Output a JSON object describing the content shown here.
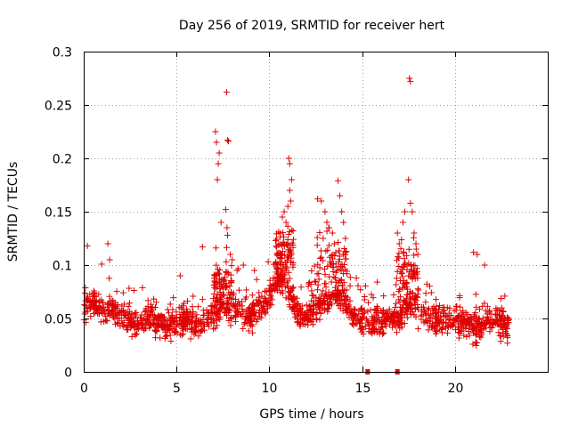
{
  "chart_data": {
    "type": "scatter",
    "title": "Day 256 of 2019, SRMTID for receiver hert",
    "xlabel": "GPS time / hours",
    "ylabel": "SRMTID / TECUs",
    "xlim": [
      0,
      25
    ],
    "ylim": [
      0,
      0.3
    ],
    "grid": true,
    "marker": "+",
    "color": "#e00000",
    "x_ticks": [
      "0",
      "5",
      "10",
      "15",
      "20"
    ],
    "x_tick_values": [
      0,
      5,
      10,
      15,
      20
    ],
    "y_ticks": [
      "0",
      "0.05",
      "0.1",
      "0.15",
      "0.2",
      "0.25",
      "0.3"
    ],
    "y_tick_values": [
      0,
      0.05,
      0.1,
      0.15,
      0.2,
      0.25,
      0.3
    ],
    "baseline": [
      [
        0,
        0.062
      ],
      [
        0.5,
        0.065
      ],
      [
        1,
        0.058
      ],
      [
        1.5,
        0.06
      ],
      [
        2,
        0.052
      ],
      [
        2.5,
        0.048
      ],
      [
        3,
        0.045
      ],
      [
        3.5,
        0.05
      ],
      [
        4,
        0.048
      ],
      [
        4.5,
        0.042
      ],
      [
        5,
        0.045
      ],
      [
        5.5,
        0.05
      ],
      [
        6,
        0.045
      ],
      [
        6.5,
        0.048
      ],
      [
        7,
        0.055
      ],
      [
        7.5,
        0.06
      ],
      [
        8,
        0.058
      ],
      [
        8.5,
        0.055
      ],
      [
        9,
        0.052
      ],
      [
        9.5,
        0.06
      ],
      [
        10,
        0.07
      ],
      [
        10.5,
        0.09
      ],
      [
        11,
        0.08
      ],
      [
        11.5,
        0.055
      ],
      [
        12,
        0.05
      ],
      [
        12.5,
        0.058
      ],
      [
        13,
        0.065
      ],
      [
        13.5,
        0.075
      ],
      [
        14,
        0.07
      ],
      [
        14.5,
        0.052
      ],
      [
        15,
        0.048
      ],
      [
        15.5,
        0.045
      ],
      [
        16,
        0.048
      ],
      [
        16.5,
        0.05
      ],
      [
        17,
        0.052
      ],
      [
        17.5,
        0.065
      ],
      [
        18,
        0.058
      ],
      [
        18.5,
        0.05
      ],
      [
        19,
        0.048
      ],
      [
        19.5,
        0.052
      ],
      [
        20,
        0.05
      ],
      [
        20.5,
        0.045
      ],
      [
        21,
        0.04
      ],
      [
        21.5,
        0.045
      ],
      [
        22,
        0.048
      ],
      [
        22.5,
        0.045
      ],
      [
        22.9,
        0.04
      ]
    ],
    "peaks": [
      [
        7.1,
        0.225
      ],
      [
        7.15,
        0.215
      ],
      [
        7.2,
        0.18
      ],
      [
        7.25,
        0.195
      ],
      [
        7.3,
        0.205
      ],
      [
        7.7,
        0.262
      ],
      [
        7.75,
        0.217
      ],
      [
        7.8,
        0.216
      ],
      [
        7.65,
        0.152
      ],
      [
        7.72,
        0.135
      ],
      [
        7.75,
        0.128
      ],
      [
        7.4,
        0.14
      ],
      [
        6.4,
        0.117
      ],
      [
        7.9,
        0.11
      ],
      [
        8.0,
        0.105
      ],
      [
        10.7,
        0.145
      ],
      [
        10.8,
        0.15
      ],
      [
        10.9,
        0.14
      ],
      [
        11.0,
        0.155
      ],
      [
        11.05,
        0.2
      ],
      [
        11.1,
        0.195
      ],
      [
        11.1,
        0.17
      ],
      [
        11.15,
        0.16
      ],
      [
        11.2,
        0.18
      ],
      [
        11.0,
        0.12
      ],
      [
        10.5,
        0.12
      ],
      [
        10.6,
        0.13
      ],
      [
        10.4,
        0.11
      ],
      [
        12.6,
        0.162
      ],
      [
        12.8,
        0.16
      ],
      [
        13.0,
        0.15
      ],
      [
        13.1,
        0.14
      ],
      [
        13.2,
        0.135
      ],
      [
        13.4,
        0.13
      ],
      [
        13.7,
        0.179
      ],
      [
        13.8,
        0.165
      ],
      [
        13.9,
        0.15
      ],
      [
        14.0,
        0.14
      ],
      [
        14.1,
        0.125
      ],
      [
        12.9,
        0.125
      ],
      [
        13.5,
        0.12
      ],
      [
        16.9,
        0.13
      ],
      [
        17.0,
        0.12
      ],
      [
        17.2,
        0.14
      ],
      [
        17.3,
        0.15
      ],
      [
        17.5,
        0.18
      ],
      [
        17.6,
        0.158
      ],
      [
        17.7,
        0.15
      ],
      [
        17.55,
        0.275
      ],
      [
        17.6,
        0.272
      ],
      [
        17.8,
        0.13
      ],
      [
        17.9,
        0.12
      ],
      [
        18.0,
        0.11
      ],
      [
        0.2,
        0.118
      ],
      [
        1.3,
        0.12
      ],
      [
        1.4,
        0.105
      ],
      [
        21.0,
        0.112
      ],
      [
        21.2,
        0.11
      ],
      [
        21.6,
        0.1
      ],
      [
        5.2,
        0.09
      ],
      [
        8.6,
        0.1
      ],
      [
        9.2,
        0.095
      ]
    ],
    "gap_markers": [
      15.3,
      16.9
    ],
    "x_end": 22.9,
    "seed": 256
  }
}
